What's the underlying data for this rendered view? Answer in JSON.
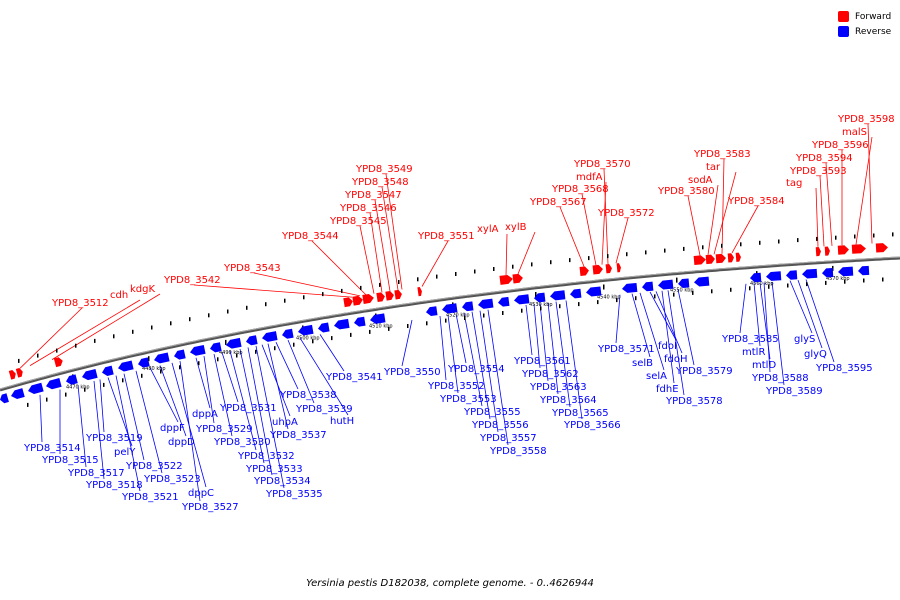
{
  "caption": "Yersinia pestis D182038, complete genome. - 0..4626944",
  "legend": {
    "forward": {
      "label": "Forward",
      "color": "#ff0000"
    },
    "reverse": {
      "label": "Reverse",
      "color": "#0000ff"
    }
  },
  "axis_ticks": [
    "4470 kbp",
    "4480 kbp",
    "4490 kbp",
    "4500 kbp",
    "4510 kbp",
    "4520 kbp",
    "4530 kbp",
    "4540 kbp",
    "4550 kbp",
    "4560 kbp",
    "4570 kbp"
  ],
  "forward_labels": [
    "YPD8_3512",
    "cdh",
    "kdgK",
    "YPD8_3542",
    "YPD8_3543",
    "YPD8_3544",
    "YPD8_3545",
    "YPD8_3546",
    "YPD8_3547",
    "YPD8_3548",
    "YPD8_3549",
    "YPD8_3551",
    "xylA",
    "xylB",
    "YPD8_3567",
    "YPD8_3568",
    "mdfA",
    "YPD8_3570",
    "YPD8_3572",
    "YPD8_3580",
    "sodA",
    "tar",
    "YPD8_3583",
    "YPD8_3584",
    "tag",
    "YPD8_3593",
    "YPD8_3594",
    "YPD8_3596",
    "malS",
    "YPD8_3598"
  ],
  "reverse_labels": [
    "YPD8_3514",
    "YPD8_3515",
    "YPD8_3517",
    "YPD8_3518",
    "YPD8_3519",
    "pelY",
    "YPD8_3521",
    "YPD8_3522",
    "YPD8_3523",
    "dppF",
    "dppD",
    "dppC",
    "YPD8_3527",
    "dppA",
    "YPD8_3529",
    "YPD8_3530",
    "YPD8_3531",
    "YPD8_3532",
    "YPD8_3533",
    "YPD8_3534",
    "YPD8_3535",
    "uhpA",
    "YPD8_3537",
    "YPD8_3538",
    "YPD8_3539",
    "hutH",
    "YPD8_3541",
    "YPD8_3550",
    "YPD8_3552",
    "YPD8_3553",
    "YPD8_3554",
    "YPD8_3555",
    "YPD8_3556",
    "YPD8_3557",
    "YPD8_3558",
    "YPD8_3561",
    "YPD8_3562",
    "YPD8_3563",
    "YPD8_3564",
    "YPD8_3565",
    "YPD8_3566",
    "YPD8_3571",
    "selB",
    "selA",
    "fdoI",
    "fdoH",
    "fdhE",
    "YPD8_3578",
    "YPD8_3579",
    "YPD8_3585",
    "mtlR",
    "mtlD",
    "YPD8_3588",
    "YPD8_3589",
    "glyS",
    "glyQ",
    "YPD8_3595"
  ]
}
